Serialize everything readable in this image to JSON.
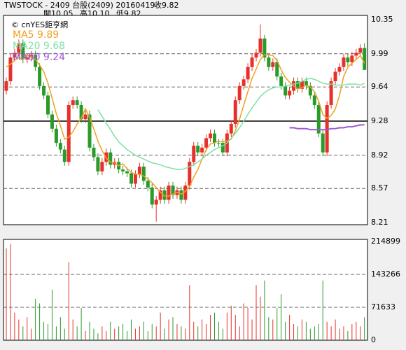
{
  "header": {
    "title": "TWSTOCK - 2409 台股(2409) 20160419",
    "close": "收9.82",
    "open": "開10.05",
    "high": "高10.10",
    "low": "低9.82"
  },
  "chart_data": [
    {
      "type": "candlestick",
      "source": "© cnYES鉅亨網",
      "up_color": "#e8302a",
      "down_color": "#2a9a2a",
      "ylim": [
        8.21,
        10.35
      ],
      "yticks": [
        10.35,
        9.99,
        9.64,
        9.28,
        8.92,
        8.57,
        8.21
      ],
      "grid": true,
      "open": [
        9.6,
        9.7,
        9.95,
        10.0,
        10.1,
        9.93,
        9.95,
        9.98,
        9.85,
        9.65,
        9.55,
        9.35,
        9.2,
        9.05,
        8.98,
        8.85,
        9.45,
        9.5,
        9.45,
        9.3,
        9.35,
        9.0,
        8.9,
        8.75,
        8.85,
        8.95,
        8.82,
        8.85,
        8.77,
        8.75,
        8.73,
        8.62,
        8.72,
        8.8,
        8.65,
        8.58,
        8.4,
        8.45,
        8.55,
        8.45,
        8.6,
        8.5,
        8.55,
        8.45,
        8.6,
        8.85,
        9.02,
        8.95,
        9.0,
        9.1,
        9.15,
        9.05,
        9.05,
        8.95,
        9.15,
        9.25,
        9.5,
        9.65,
        9.72,
        9.85,
        9.95,
        10.0,
        10.15,
        9.95,
        9.85,
        9.9,
        9.75,
        9.65,
        9.55,
        9.6,
        9.7,
        9.62,
        9.7,
        9.65,
        9.55,
        9.45,
        9.15,
        8.95,
        9.45,
        9.7,
        9.8,
        9.85,
        9.95,
        9.9,
        9.97,
        10.0,
        10.05
      ],
      "high": [
        9.74,
        9.99,
        10.04,
        10.14,
        10.14,
        9.99,
        10.02,
        10.02,
        9.89,
        9.69,
        9.59,
        9.39,
        9.24,
        9.09,
        9.02,
        9.49,
        9.54,
        9.54,
        9.49,
        9.39,
        9.39,
        9.04,
        8.94,
        8.89,
        8.99,
        8.99,
        8.89,
        8.89,
        8.81,
        8.79,
        8.77,
        8.76,
        8.84,
        8.84,
        8.69,
        8.62,
        8.49,
        8.59,
        8.59,
        8.64,
        8.64,
        8.59,
        8.59,
        8.64,
        8.89,
        9.06,
        9.06,
        9.04,
        9.14,
        9.19,
        9.19,
        9.09,
        9.09,
        9.19,
        9.29,
        9.54,
        9.69,
        9.76,
        9.89,
        9.99,
        10.04,
        10.3,
        10.19,
        9.99,
        9.94,
        9.94,
        9.79,
        9.69,
        9.64,
        9.74,
        9.74,
        9.74,
        9.74,
        9.69,
        9.59,
        9.49,
        9.19,
        9.49,
        9.74,
        9.84,
        9.89,
        9.99,
        9.99,
        10.01,
        10.04,
        10.09,
        10.1
      ],
      "low": [
        9.56,
        9.66,
        9.91,
        9.96,
        9.89,
        9.89,
        9.91,
        9.81,
        9.61,
        9.51,
        9.31,
        9.16,
        9.01,
        8.94,
        8.81,
        8.81,
        9.41,
        9.41,
        9.26,
        9.26,
        8.96,
        8.86,
        8.71,
        8.71,
        8.81,
        8.78,
        8.78,
        8.73,
        8.71,
        8.69,
        8.58,
        8.58,
        8.68,
        8.61,
        8.54,
        8.36,
        8.22,
        8.41,
        8.41,
        8.41,
        8.46,
        8.46,
        8.41,
        8.41,
        8.56,
        8.81,
        8.91,
        8.91,
        8.96,
        9.06,
        9.01,
        9.01,
        8.91,
        8.91,
        9.11,
        9.21,
        9.46,
        9.61,
        9.68,
        9.81,
        9.91,
        9.96,
        9.91,
        9.81,
        9.81,
        9.71,
        9.61,
        9.51,
        9.51,
        9.56,
        9.58,
        9.58,
        9.61,
        9.51,
        9.41,
        9.11,
        8.91,
        8.91,
        9.41,
        9.66,
        9.76,
        9.81,
        9.86,
        9.86,
        9.93,
        9.96,
        9.82
      ],
      "close": [
        9.7,
        9.95,
        10.0,
        10.1,
        9.93,
        9.95,
        9.98,
        9.85,
        9.65,
        9.55,
        9.35,
        9.2,
        9.05,
        8.98,
        8.85,
        9.45,
        9.5,
        9.45,
        9.3,
        9.35,
        9.0,
        8.9,
        8.75,
        8.85,
        8.95,
        8.82,
        8.85,
        8.77,
        8.75,
        8.73,
        8.62,
        8.72,
        8.8,
        8.65,
        8.58,
        8.4,
        8.45,
        8.55,
        8.45,
        8.6,
        8.5,
        8.55,
        8.45,
        8.6,
        8.85,
        9.02,
        8.95,
        9.0,
        9.1,
        9.15,
        9.05,
        9.05,
        8.95,
        9.15,
        9.25,
        9.5,
        9.65,
        9.72,
        9.85,
        9.95,
        10.0,
        10.15,
        9.95,
        9.85,
        9.9,
        9.75,
        9.65,
        9.55,
        9.6,
        9.7,
        9.62,
        9.7,
        9.65,
        9.55,
        9.45,
        9.15,
        8.95,
        9.45,
        9.7,
        9.8,
        9.85,
        9.95,
        9.9,
        9.97,
        10.0,
        10.05,
        9.82
      ],
      "series": [
        {
          "name": "MA5 9.89",
          "color": "#f0a020",
          "values": [
            9.85,
            9.88,
            9.92,
            9.95,
            9.93,
            9.98,
            9.96,
            9.93,
            9.87,
            9.8,
            9.68,
            9.52,
            9.36,
            9.23,
            9.09,
            9.11,
            9.17,
            9.25,
            9.31,
            9.41,
            9.32,
            9.2,
            9.07,
            8.97,
            8.89,
            8.85,
            8.84,
            8.81,
            8.83,
            8.78,
            8.74,
            8.72,
            8.72,
            8.7,
            8.67,
            8.63,
            8.58,
            8.53,
            8.49,
            8.49,
            8.51,
            8.53,
            8.51,
            8.54,
            8.59,
            8.69,
            8.77,
            8.88,
            8.98,
            9.04,
            9.05,
            9.07,
            9.06,
            9.07,
            9.09,
            9.18,
            9.3,
            9.45,
            9.59,
            9.73,
            9.83,
            9.93,
            9.98,
            9.98,
            9.97,
            9.92,
            9.82,
            9.74,
            9.69,
            9.65,
            9.62,
            9.63,
            9.66,
            9.64,
            9.59,
            9.49,
            9.35,
            9.31,
            9.34,
            9.41,
            9.55,
            9.75,
            9.85,
            9.89,
            9.93,
            9.97,
            9.89
          ]
        },
        {
          "name": "MA20 9.68",
          "color": "#7fe0a8",
          "values": [
            null,
            null,
            null,
            null,
            null,
            null,
            null,
            null,
            null,
            null,
            null,
            null,
            null,
            null,
            null,
            null,
            null,
            null,
            null,
            null,
            null,
            null,
            9.4,
            9.33,
            9.26,
            9.19,
            9.12,
            9.06,
            9.02,
            8.98,
            8.95,
            8.92,
            8.9,
            8.88,
            8.86,
            8.84,
            8.83,
            8.82,
            8.8,
            8.79,
            8.78,
            8.77,
            8.77,
            8.78,
            8.8,
            8.82,
            8.85,
            8.88,
            8.92,
            8.95,
            8.98,
            9.0,
            9.02,
            9.05,
            9.1,
            9.15,
            9.21,
            9.28,
            9.35,
            9.42,
            9.48,
            9.54,
            9.58,
            9.61,
            9.63,
            9.64,
            9.64,
            9.65,
            9.66,
            9.67,
            9.68,
            9.7,
            9.72,
            9.73,
            9.72,
            9.7,
            9.68,
            9.67,
            9.67,
            9.66,
            9.66,
            9.66,
            9.67,
            9.67,
            9.67,
            9.66,
            9.68
          ]
        },
        {
          "name": "MA60 9.24",
          "color": "#9a5ad2",
          "values": [
            null,
            null,
            null,
            null,
            null,
            null,
            null,
            null,
            null,
            null,
            null,
            null,
            null,
            null,
            null,
            null,
            null,
            null,
            null,
            null,
            null,
            null,
            null,
            null,
            null,
            null,
            null,
            null,
            null,
            null,
            null,
            null,
            null,
            null,
            null,
            null,
            null,
            null,
            null,
            null,
            null,
            null,
            null,
            null,
            null,
            null,
            null,
            null,
            null,
            null,
            null,
            null,
            null,
            null,
            null,
            null,
            null,
            null,
            null,
            null,
            null,
            null,
            null,
            null,
            null,
            null,
            null,
            null,
            9.21,
            9.21,
            9.2,
            9.2,
            9.2,
            9.19,
            9.19,
            9.19,
            9.19,
            9.19,
            9.2,
            9.2,
            9.21,
            9.21,
            9.22,
            9.22,
            9.23,
            9.24,
            9.24
          ]
        }
      ]
    },
    {
      "type": "volume",
      "ylim": [
        0,
        214899
      ],
      "yticks": [
        214899,
        143266,
        71633,
        0
      ],
      "grid": true,
      "values": [
        200000,
        210000,
        60000,
        45000,
        30000,
        50000,
        25000,
        90000,
        80000,
        40000,
        35000,
        110000,
        30000,
        50000,
        25000,
        170000,
        45000,
        30000,
        70000,
        20000,
        40000,
        25000,
        15000,
        30000,
        20000,
        40000,
        25000,
        30000,
        35000,
        20000,
        45000,
        25000,
        30000,
        40000,
        20000,
        35000,
        30000,
        60000,
        25000,
        45000,
        50000,
        35000,
        30000,
        25000,
        120000,
        40000,
        30000,
        45000,
        35000,
        55000,
        60000,
        40000,
        25000,
        60000,
        75000,
        55000,
        30000,
        80000,
        70000,
        45000,
        120000,
        95000,
        130000,
        50000,
        45000,
        70000,
        100000,
        40000,
        55000,
        35000,
        30000,
        45000,
        40000,
        25000,
        30000,
        35000,
        130000,
        40000,
        30000,
        45000,
        25000,
        30000,
        20000,
        35000,
        40000,
        30000,
        50000
      ]
    }
  ]
}
